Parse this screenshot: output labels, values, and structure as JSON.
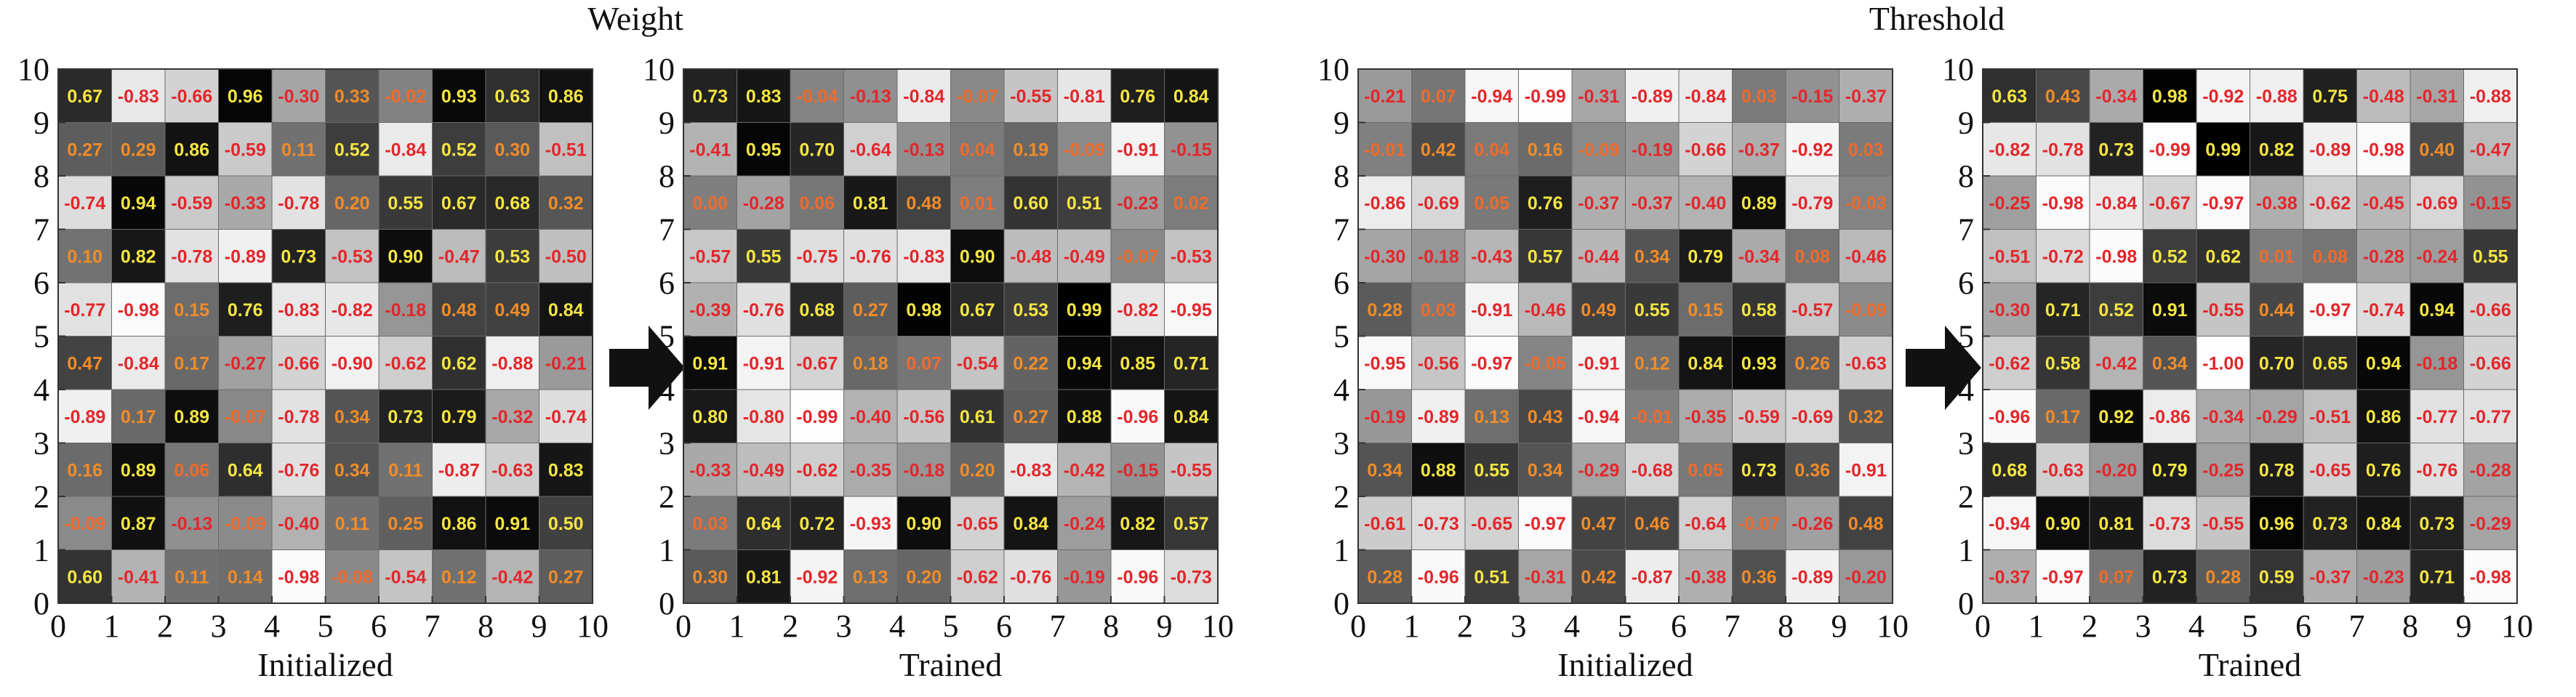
{
  "sections": [
    {
      "title": "Weight"
    },
    {
      "title": "Threshold"
    }
  ],
  "chart_data": [
    {
      "type": "heatmap",
      "xlabel": "Initialized",
      "x_ticks": [
        "0",
        "1",
        "2",
        "3",
        "4",
        "5",
        "6",
        "7",
        "8",
        "9",
        "10"
      ],
      "y_ticks": [
        "0",
        "1",
        "2",
        "3",
        "4",
        "5",
        "6",
        "7",
        "8",
        "9",
        "10"
      ],
      "xlim": [
        0,
        10
      ],
      "ylim": [
        0,
        10
      ],
      "values": [
        [
          0.67,
          -0.83,
          -0.66,
          0.96,
          -0.3,
          0.33,
          -0.02,
          0.93,
          0.63,
          0.86
        ],
        [
          0.27,
          0.29,
          0.86,
          -0.59,
          0.11,
          0.52,
          -0.84,
          0.52,
          0.3,
          -0.51
        ],
        [
          -0.74,
          0.94,
          -0.59,
          -0.33,
          -0.78,
          0.2,
          0.55,
          0.67,
          0.68,
          0.32
        ],
        [
          0.1,
          0.82,
          -0.78,
          -0.89,
          0.73,
          -0.53,
          0.9,
          -0.47,
          0.53,
          -0.5
        ],
        [
          -0.77,
          -0.98,
          0.15,
          0.76,
          -0.83,
          -0.82,
          -0.18,
          0.48,
          0.49,
          0.84
        ],
        [
          0.47,
          -0.84,
          0.17,
          -0.27,
          -0.66,
          -0.9,
          -0.62,
          0.62,
          -0.88,
          -0.21
        ],
        [
          -0.89,
          0.17,
          0.89,
          -0.07,
          -0.78,
          0.34,
          0.73,
          0.79,
          -0.32,
          -0.74
        ],
        [
          0.16,
          0.89,
          0.06,
          0.64,
          -0.76,
          0.34,
          0.11,
          -0.87,
          -0.63,
          0.83
        ],
        [
          -0.09,
          0.87,
          -0.13,
          -0.09,
          -0.4,
          0.11,
          0.25,
          0.86,
          0.91,
          0.5
        ],
        [
          0.6,
          -0.41,
          0.11,
          0.14,
          -0.98,
          -0.08,
          -0.54,
          0.12,
          -0.42,
          0.27
        ]
      ]
    },
    {
      "type": "heatmap",
      "xlabel": "Trained",
      "x_ticks": [
        "0",
        "1",
        "2",
        "3",
        "4",
        "5",
        "6",
        "7",
        "8",
        "9",
        "10"
      ],
      "y_ticks": [
        "0",
        "1",
        "2",
        "3",
        "4",
        "5",
        "6",
        "7",
        "8",
        "9",
        "10"
      ],
      "xlim": [
        0,
        10
      ],
      "ylim": [
        0,
        10
      ],
      "values": [
        [
          0.73,
          0.83,
          -0.04,
          -0.13,
          -0.84,
          -0.07,
          -0.55,
          -0.81,
          0.76,
          0.84
        ],
        [
          -0.41,
          0.95,
          0.7,
          -0.64,
          -0.13,
          0.04,
          0.19,
          -0.09,
          -0.91,
          -0.15
        ],
        [
          0.0,
          -0.28,
          0.06,
          0.81,
          0.48,
          0.01,
          0.6,
          0.51,
          -0.23,
          0.02
        ],
        [
          -0.57,
          0.55,
          -0.75,
          -0.76,
          -0.83,
          0.9,
          -0.48,
          -0.49,
          -0.07,
          -0.53
        ],
        [
          -0.39,
          -0.76,
          0.68,
          0.27,
          0.98,
          0.67,
          0.53,
          0.99,
          -0.82,
          -0.95
        ],
        [
          0.91,
          -0.91,
          -0.67,
          0.18,
          0.07,
          -0.54,
          0.22,
          0.94,
          0.85,
          0.71
        ],
        [
          0.8,
          -0.8,
          -0.99,
          -0.4,
          -0.56,
          0.61,
          0.27,
          0.88,
          -0.96,
          0.84
        ],
        [
          -0.33,
          -0.49,
          -0.62,
          -0.35,
          -0.18,
          0.2,
          -0.83,
          -0.42,
          -0.15,
          -0.55
        ],
        [
          0.03,
          0.64,
          0.72,
          -0.93,
          0.9,
          -0.65,
          0.84,
          -0.24,
          0.82,
          0.57
        ],
        [
          0.3,
          0.81,
          -0.92,
          0.13,
          0.2,
          -0.62,
          -0.76,
          -0.19,
          -0.96,
          -0.73
        ]
      ]
    },
    {
      "type": "heatmap",
      "xlabel": "Initialized",
      "x_ticks": [
        "0",
        "1",
        "2",
        "3",
        "4",
        "5",
        "6",
        "7",
        "8",
        "9",
        "10"
      ],
      "y_ticks": [
        "0",
        "1",
        "2",
        "3",
        "4",
        "5",
        "6",
        "7",
        "8",
        "9",
        "10"
      ],
      "xlim": [
        0,
        10
      ],
      "ylim": [
        0,
        10
      ],
      "values": [
        [
          -0.21,
          0.07,
          -0.94,
          -0.99,
          -0.31,
          -0.89,
          -0.84,
          0.03,
          -0.15,
          -0.37
        ],
        [
          -0.01,
          0.42,
          0.04,
          0.16,
          -0.09,
          -0.19,
          -0.66,
          -0.37,
          -0.92,
          0.03
        ],
        [
          -0.86,
          -0.69,
          0.05,
          0.76,
          -0.37,
          -0.37,
          -0.4,
          0.89,
          -0.79,
          -0.03
        ],
        [
          -0.3,
          -0.18,
          -0.43,
          0.57,
          -0.44,
          0.34,
          0.79,
          -0.34,
          0.08,
          -0.46
        ],
        [
          0.28,
          0.03,
          -0.91,
          -0.46,
          0.49,
          0.55,
          0.15,
          0.58,
          -0.57,
          -0.09
        ],
        [
          -0.95,
          -0.56,
          -0.97,
          -0.05,
          -0.91,
          0.12,
          0.84,
          0.93,
          0.26,
          -0.63
        ],
        [
          -0.19,
          -0.89,
          0.13,
          0.43,
          -0.94,
          -0.01,
          -0.35,
          -0.59,
          -0.69,
          0.32
        ],
        [
          0.34,
          0.88,
          0.55,
          0.34,
          -0.29,
          -0.68,
          0.05,
          0.73,
          0.36,
          -0.91
        ],
        [
          -0.61,
          -0.73,
          -0.65,
          -0.97,
          0.47,
          0.46,
          -0.64,
          -0.07,
          -0.26,
          0.48
        ],
        [
          0.28,
          -0.96,
          0.51,
          -0.31,
          0.42,
          -0.87,
          -0.38,
          0.36,
          -0.89,
          -0.2
        ]
      ]
    },
    {
      "type": "heatmap",
      "xlabel": "Trained",
      "x_ticks": [
        "0",
        "1",
        "2",
        "3",
        "4",
        "5",
        "6",
        "7",
        "8",
        "9",
        "10"
      ],
      "y_ticks": [
        "0",
        "1",
        "2",
        "3",
        "4",
        "5",
        "6",
        "7",
        "8",
        "9",
        "10"
      ],
      "xlim": [
        0,
        10
      ],
      "ylim": [
        0,
        10
      ],
      "values": [
        [
          0.63,
          0.43,
          -0.34,
          0.98,
          -0.92,
          -0.88,
          0.75,
          -0.48,
          -0.31,
          -0.88
        ],
        [
          -0.82,
          -0.78,
          0.73,
          -0.99,
          0.99,
          0.82,
          -0.89,
          -0.98,
          0.4,
          -0.47
        ],
        [
          -0.25,
          -0.98,
          -0.84,
          -0.67,
          -0.97,
          -0.38,
          -0.62,
          -0.45,
          -0.69,
          -0.15
        ],
        [
          -0.51,
          -0.72,
          -0.98,
          0.52,
          0.62,
          0.01,
          0.08,
          -0.28,
          -0.24,
          0.55
        ],
        [
          -0.3,
          0.71,
          0.52,
          0.91,
          -0.55,
          0.44,
          -0.97,
          -0.74,
          0.94,
          -0.66
        ],
        [
          -0.62,
          0.58,
          -0.42,
          0.34,
          -1.0,
          0.7,
          0.65,
          0.94,
          -0.18,
          -0.66
        ],
        [
          -0.96,
          0.17,
          0.92,
          -0.86,
          -0.34,
          -0.29,
          -0.51,
          0.86,
          -0.77,
          -0.77
        ],
        [
          0.68,
          -0.63,
          -0.2,
          0.79,
          -0.25,
          0.78,
          -0.65,
          0.76,
          -0.76,
          -0.28
        ],
        [
          -0.94,
          0.9,
          0.81,
          -0.73,
          -0.55,
          0.96,
          0.73,
          0.84,
          0.73,
          -0.29
        ],
        [
          -0.37,
          -0.97,
          0.07,
          0.73,
          0.28,
          0.59,
          -0.37,
          -0.23,
          0.71,
          -0.98
        ]
      ]
    }
  ]
}
